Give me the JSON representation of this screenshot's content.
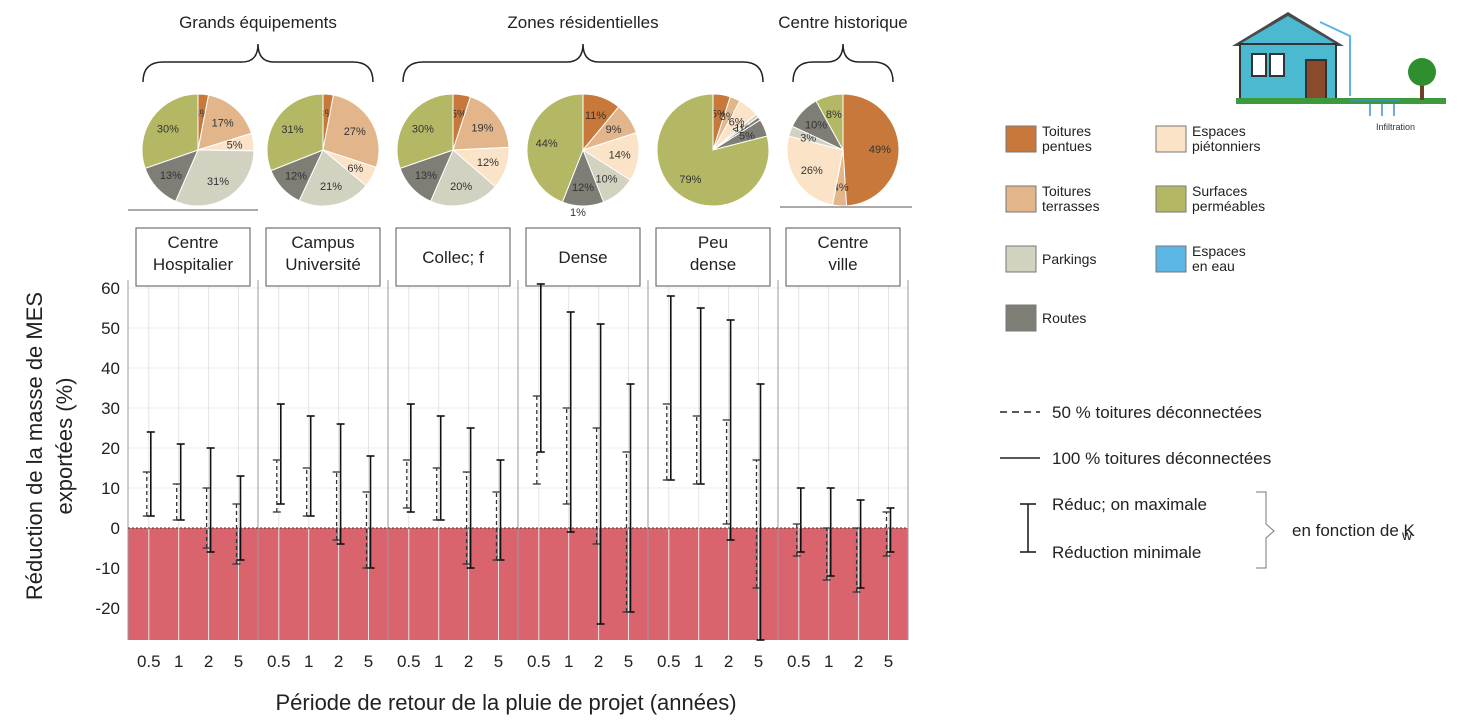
{
  "chart_data": {
    "type": "errorbar",
    "xlabel": "Période de retour de la pluie de projet (années)",
    "ylabel_line1": "Réduction de la masse de MES",
    "ylabel_line2": "exportées (%)",
    "ylim": [
      -28,
      62
    ],
    "y_ticks": [
      60,
      50,
      40,
      30,
      20,
      10,
      0,
      -10,
      -20
    ],
    "x_categories": [
      "0.5",
      "1",
      "2",
      "5"
    ],
    "groups": [
      {
        "label": "Grands équipements",
        "panels": [
          0,
          1
        ]
      },
      {
        "label": "Zones résidentielles",
        "panels": [
          2,
          3,
          4
        ]
      },
      {
        "label": "Centre historique",
        "panels": [
          5
        ]
      }
    ],
    "panels": [
      {
        "title": [
          "Centre",
          "Hospitalier"
        ],
        "pie": {
          "values": [
            3,
            17,
            5,
            31,
            13,
            30
          ],
          "classes": [
            "Toitures pentues",
            "Toitures terrasses",
            "Espaces piétonniers",
            "Parkings",
            "Routes",
            "Surfaces perméables"
          ],
          "labels": [
            "3%",
            "17%",
            "5%",
            "31%",
            "13%",
            "30%"
          ]
        },
        "series": {
          "50 % toitures déconnectées": [
            [
              3,
              14
            ],
            [
              2,
              11
            ],
            [
              -5,
              10
            ],
            [
              -9,
              6
            ]
          ],
          "100 % toitures déconnectées": [
            [
              3,
              24
            ],
            [
              2,
              21
            ],
            [
              -6,
              20
            ],
            [
              -8,
              13
            ]
          ]
        }
      },
      {
        "title": [
          "Campus",
          "Université"
        ],
        "pie": {
          "values": [
            3,
            27,
            6,
            21,
            12,
            31
          ],
          "classes": [
            "Toitures pentues",
            "Toitures terrasses",
            "Espaces piétonniers",
            "Parkings",
            "Routes",
            "Surfaces perméables"
          ],
          "labels": [
            "3%",
            "27%",
            "6%",
            "21%",
            "12%",
            "31%"
          ]
        },
        "series": {
          "50 % toitures déconnectées": [
            [
              4,
              17
            ],
            [
              3,
              15
            ],
            [
              -3,
              14
            ],
            [
              -10,
              9
            ]
          ],
          "100 % toitures déconnectées": [
            [
              6,
              31
            ],
            [
              3,
              28
            ],
            [
              -4,
              26
            ],
            [
              -10,
              18
            ]
          ]
        }
      },
      {
        "title": [
          "Collec; f"
        ],
        "pie": {
          "values": [
            5,
            19,
            12,
            20,
            13,
            30
          ],
          "classes": [
            "Toitures pentues",
            "Toitures terrasses",
            "Espaces piétonniers",
            "Parkings",
            "Routes",
            "Surfaces perméables"
          ],
          "labels": [
            "5%",
            "19%",
            "12%",
            "20%",
            "13%",
            "30%"
          ]
        },
        "series": {
          "50 % toitures déconnectées": [
            [
              5,
              17
            ],
            [
              2,
              15
            ],
            [
              -9,
              14
            ],
            [
              -8,
              9
            ]
          ],
          "100 % toitures déconnectées": [
            [
              4,
              31
            ],
            [
              2,
              28
            ],
            [
              -10,
              25
            ],
            [
              -8,
              17
            ]
          ]
        }
      },
      {
        "title": [
          "Dense"
        ],
        "pie": {
          "values": [
            11,
            9,
            14,
            10,
            12,
            44
          ],
          "classes": [
            "Toitures pentues",
            "Toitures terrasses",
            "Espaces piétonniers",
            "Parkings",
            "Routes",
            "Surfaces perméables"
          ],
          "labels": [
            "11%",
            "9%",
            "14%",
            "10%",
            "12%",
            "44%"
          ],
          "extra_label": "1%"
        },
        "series": {
          "50 % toitures déconnectées": [
            [
              11,
              33
            ],
            [
              6,
              30
            ],
            [
              -4,
              25
            ],
            [
              -21,
              19
            ]
          ],
          "100 % toitures déconnectées": [
            [
              19,
              61
            ],
            [
              -1,
              54
            ],
            [
              -24,
              51
            ],
            [
              -21,
              36
            ]
          ]
        }
      },
      {
        "title": [
          "Peu",
          "dense"
        ],
        "pie": {
          "values": [
            5,
            3,
            6,
            1,
            1,
            5,
            79
          ],
          "classes": [
            "Toitures pentues",
            "Toitures terrasses",
            "Espaces piétonniers",
            "Parkings",
            "Routes",
            "Routes",
            "Surfaces perméables"
          ],
          "labels": [
            "5%",
            "3%",
            "6%",
            "1%",
            "<1%",
            "5%",
            "79%"
          ]
        },
        "series": {
          "50 % toitures déconnectées": [
            [
              12,
              31
            ],
            [
              11,
              28
            ],
            [
              1,
              27
            ],
            [
              -15,
              17
            ]
          ],
          "100 % toitures déconnectées": [
            [
              12,
              58
            ],
            [
              11,
              55
            ],
            [
              -3,
              52
            ],
            [
              -28,
              36
            ]
          ]
        }
      },
      {
        "title": [
          "Centre",
          "ville"
        ],
        "pie": {
          "values": [
            49,
            4,
            26,
            3,
            10,
            8
          ],
          "classes": [
            "Toitures pentues",
            "Toitures terrasses",
            "Espaces piétonniers",
            "Parkings",
            "Routes",
            "Surfaces perméables"
          ],
          "labels": [
            "49%",
            "4%",
            "26%",
            "3%",
            "10%",
            "8%"
          ]
        },
        "series": {
          "50 % toitures déconnectées": [
            [
              -7,
              1
            ],
            [
              -13,
              0
            ],
            [
              -16,
              0
            ],
            [
              -7,
              4
            ]
          ],
          "100 % toitures déconnectées": [
            [
              -6,
              10
            ],
            [
              -12,
              10
            ],
            [
              -15,
              7
            ],
            [
              -6,
              5
            ]
          ]
        }
      }
    ],
    "legend_classes": [
      {
        "name": [
          "Toitures",
          "pentues"
        ],
        "color": "#c8783a"
      },
      {
        "name": [
          "Espaces",
          "piétonniers"
        ],
        "color": "#fbe3c8"
      },
      {
        "name": [
          "Toitures",
          "terrasses"
        ],
        "color": "#e2b68a"
      },
      {
        "name": [
          "Surfaces",
          "perméables"
        ],
        "color": "#b4b864"
      },
      {
        "name": [
          "Parkings"
        ],
        "color": "#d2d2c0"
      },
      {
        "name": [
          "Espaces",
          "en eau"
        ],
        "color": "#5cb6e4"
      },
      {
        "name": [
          "Routes"
        ],
        "color": "#7e7e76"
      }
    ],
    "legend_lines": [
      {
        "name": "50 % toitures déconnectées",
        "style": "dashed"
      },
      {
        "name": "100 % toitures déconnectées",
        "style": "solid"
      }
    ],
    "legend_range": {
      "max": "Réduc; on maximale",
      "min": "Réduction minimale",
      "note": "en fonction de K",
      "note_sub": "w"
    },
    "illustration_label": "Infiltration",
    "negative_zone_color": "#d9646e"
  }
}
